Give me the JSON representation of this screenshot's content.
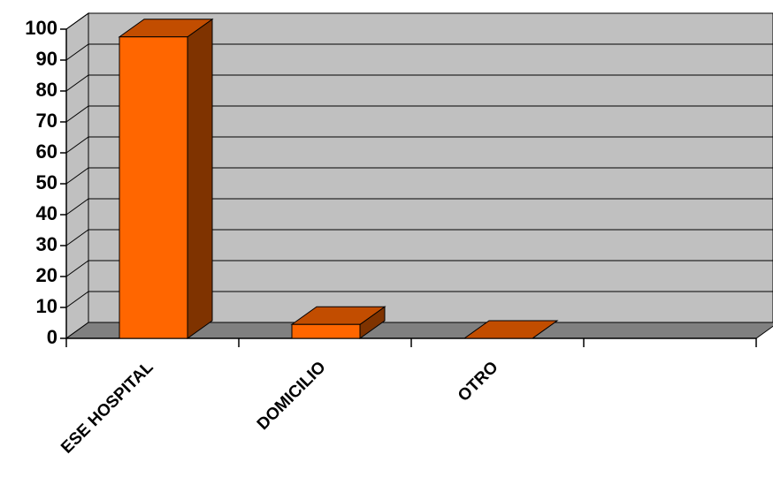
{
  "chart_data": {
    "type": "bar3d",
    "categories": [
      "ESE HOSPITAL",
      "DOMICILIO",
      "OTRO",
      null
    ],
    "values": [
      97.5,
      4.5,
      0,
      null
    ],
    "colors": {
      "front": "#ff6600",
      "top": "#c24d00",
      "side": "#7f3300"
    },
    "ylim": [
      0,
      100
    ],
    "yticks": [
      0,
      10,
      20,
      30,
      40,
      50,
      60,
      70,
      80,
      90,
      100
    ],
    "grid": true
  }
}
